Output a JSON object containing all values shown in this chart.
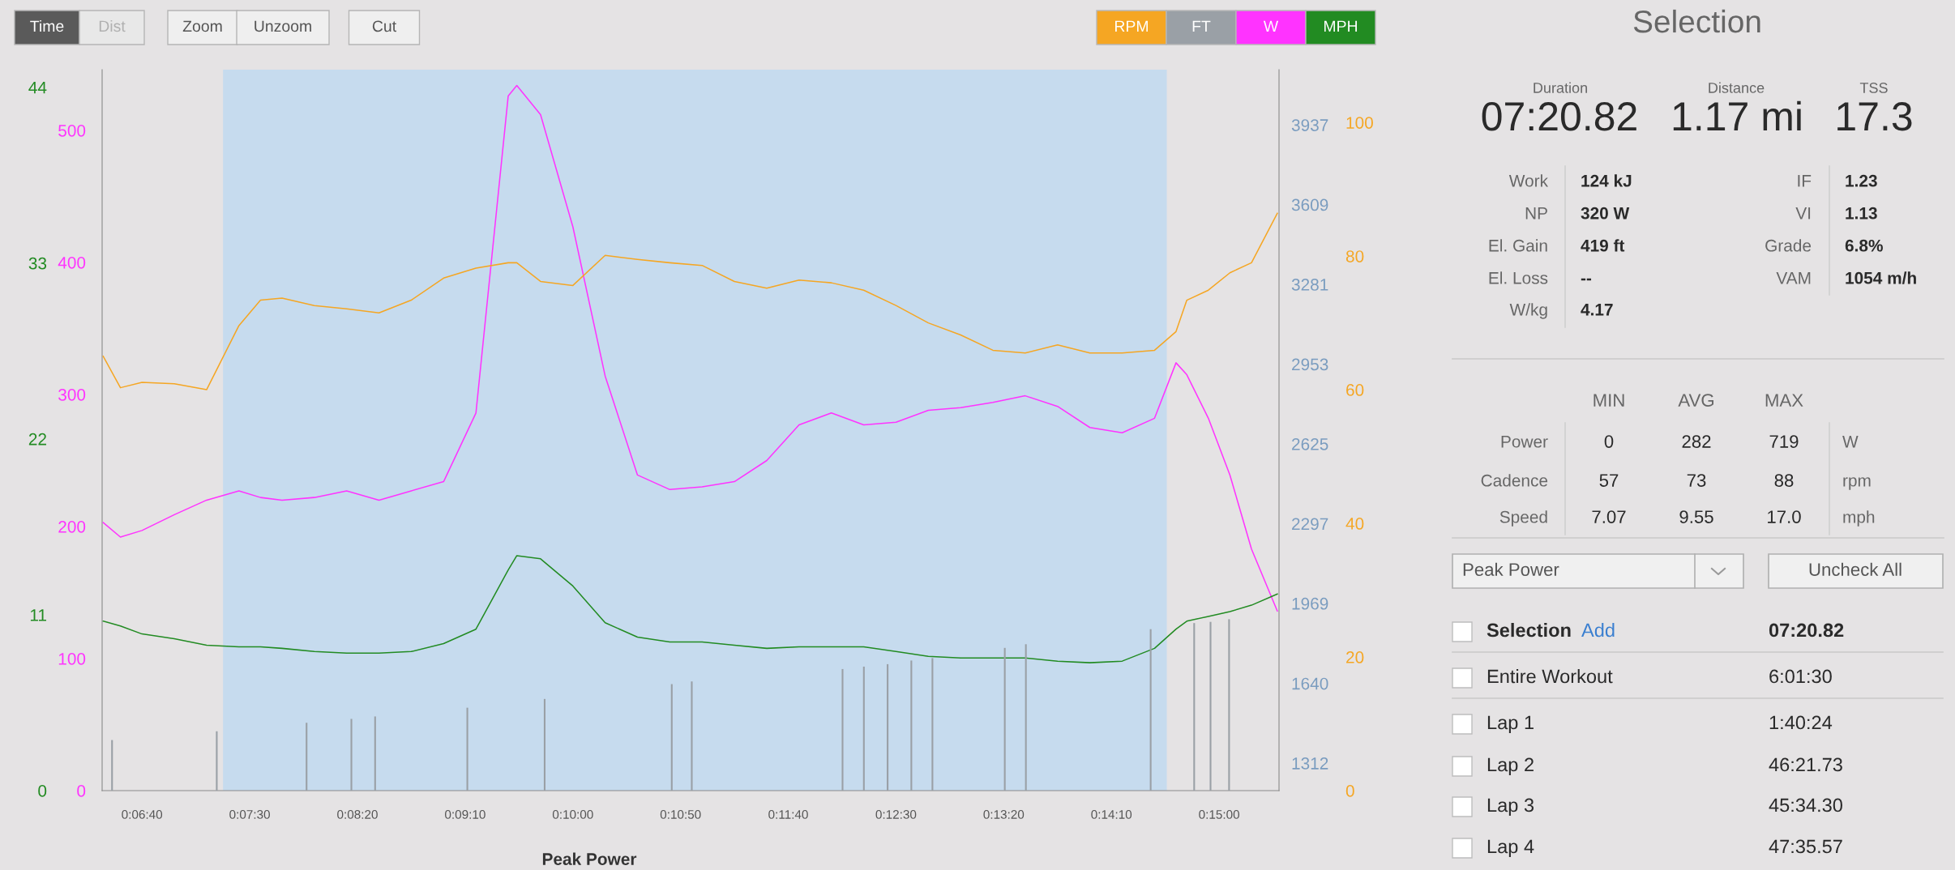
{
  "chart_data": [
    {
      "type": "line",
      "x": [
        0.10611,
        0.10833,
        0.11111,
        0.11528,
        0.11944,
        0.12361,
        0.12639,
        0.12917,
        0.13333,
        0.1375,
        0.14167,
        0.14583,
        0.15,
        0.15417,
        0.15833,
        0.15944,
        0.1625,
        0.16667,
        0.17083,
        0.175,
        0.17917,
        0.18333,
        0.1875,
        0.19167,
        0.19583,
        0.2,
        0.20417,
        0.20833,
        0.2125,
        0.21667,
        0.22083,
        0.225,
        0.22917,
        0.23333,
        0.2375,
        0.24167,
        0.24444,
        0.24583,
        0.24861,
        0.25139,
        0.25417,
        0.2575
      ],
      "series": [
        {
          "name": "RPM",
          "color": "#f5a623",
          "axis": "y2",
          "values": [
            65.0,
            60.3,
            61.1,
            60.9,
            60.0,
            69.6,
            73.4,
            73.7,
            72.6,
            72.1,
            71.5,
            73.4,
            76.7,
            78.2,
            79.0,
            79.0,
            76.2,
            75.6,
            80.1,
            79.5,
            79.0,
            78.6,
            76.2,
            75.2,
            76.4,
            76.0,
            74.9,
            72.6,
            70.0,
            68.2,
            65.9,
            65.5,
            66.7,
            65.5,
            65.5,
            65.9,
            68.7,
            73.4,
            74.9,
            77.5,
            79.0,
            86.4
          ]
        },
        {
          "name": "W",
          "color": "#ff33ff",
          "axis": "y",
          "values": [
            203,
            192,
            197,
            209,
            220,
            227,
            222,
            220,
            222,
            227,
            220,
            227,
            234,
            286,
            526,
            534,
            512,
            427,
            314,
            239,
            228,
            230,
            234,
            250,
            277,
            286,
            277,
            279,
            288,
            290,
            294,
            299,
            291,
            275,
            271,
            282,
            324,
            315,
            282,
            239,
            183,
            136
          ]
        },
        {
          "name": "MPH",
          "color": "#228b22",
          "axis": "y3",
          "values": [
            10.6,
            10.3,
            9.8,
            9.5,
            9.1,
            9.0,
            9.0,
            8.9,
            8.7,
            8.6,
            8.6,
            8.7,
            9.2,
            10.1,
            13.8,
            14.7,
            14.5,
            12.8,
            10.5,
            9.6,
            9.3,
            9.3,
            9.1,
            8.9,
            9.0,
            9.0,
            9.0,
            8.7,
            8.4,
            8.3,
            8.3,
            8.3,
            8.1,
            8.0,
            8.1,
            8.9,
            10.1,
            10.6,
            10.9,
            11.2,
            11.6,
            12.3
          ]
        }
      ],
      "xlim": [
        0.10597,
        0.25772
      ],
      "xticks": [
        {
          "value": 0.11111,
          "label": "0:06:40"
        },
        {
          "value": 0.125,
          "label": "0:07:30"
        },
        {
          "value": 0.13889,
          "label": "0:08:20"
        },
        {
          "value": 0.15278,
          "label": "0:09:10"
        },
        {
          "value": 0.16667,
          "label": "0:10:00"
        },
        {
          "value": 0.18056,
          "label": "0:10:50"
        },
        {
          "value": 0.19444,
          "label": "0:11:40"
        },
        {
          "value": 0.20833,
          "label": "0:12:30"
        },
        {
          "value": 0.22222,
          "label": "0:13:20"
        },
        {
          "value": 0.23611,
          "label": "0:14:10"
        },
        {
          "value": 0.25,
          "label": "0:15:00"
        }
      ],
      "ylim": [
        0,
        546
      ],
      "yticks": [
        0,
        100,
        200,
        300,
        400,
        500
      ],
      "y2lim": [
        0,
        107.9
      ],
      "y2ticks": [
        0,
        20,
        40,
        60,
        80,
        100
      ],
      "y3lim": [
        0,
        45.1
      ],
      "y3ticks": [
        0,
        11,
        22,
        33,
        44
      ],
      "bands": [
        {
          "axis": "x",
          "from": 0.12156,
          "to": 0.24325,
          "color": "#c6dbee"
        }
      ],
      "legend": "top right",
      "annotations": [
        "Time",
        "Dist",
        "Zoom",
        "Unzoom",
        "Cut",
        "Peak Power"
      ]
    },
    {
      "type": "bar",
      "x": [
        0.10725,
        0.12075,
        0.13233,
        0.13811,
        0.14117,
        0.15306,
        0.16303,
        0.17942,
        0.182,
        0.20144,
        0.20419,
        0.20725,
        0.21031,
        0.21303,
        0.22236,
        0.22508,
        0.24117,
        0.24678,
        0.24889,
        0.25128
      ],
      "series": [
        {
          "name": "FT",
          "color": "#9aa0a6",
          "values": [
            1407,
            1443,
            1478,
            1494,
            1504,
            1540,
            1576,
            1637,
            1648,
            1699,
            1709,
            1719,
            1734,
            1744,
            1786,
            1801,
            1863,
            1888,
            1893,
            1904
          ]
        }
      ],
      "xlim": [
        0.10597,
        0.25772
      ],
      "ylim": [
        1199,
        4164
      ],
      "yticks": [
        1312,
        1640,
        1969,
        2297,
        2625,
        2953,
        3281,
        3609,
        3937
      ],
      "tick_labels": "y",
      "legend": "top right"
    },
    {
      "type": "other",
      "title": "Selection",
      "annotations": [
        "Duration",
        "07:20.82",
        "Distance",
        "1.17 mi",
        "TSS",
        "17.3",
        "Work",
        "124 kJ",
        "NP",
        "320 W",
        "El. Gain",
        "419 ft",
        "El. Loss",
        "--",
        "W/kg",
        "4.17",
        "IF",
        "1.23",
        "VI",
        "1.13",
        "Grade",
        "6.8%",
        "VAM",
        "1054 m/h",
        "MIN",
        "AVG",
        "MAX",
        "Power",
        "0",
        "282",
        "719",
        "W",
        "Cadence",
        "57",
        "73",
        "88",
        "rpm",
        "Speed",
        "7.07",
        "9.55",
        "17.0",
        "mph",
        "Peak Power",
        "Uncheck All",
        "Selection",
        "Add",
        "07:20.82",
        "Entire Workout",
        "6:01:30",
        "Lap 1",
        "1:40:24",
        "Lap 2",
        "46:21.73",
        "Lap 3",
        "45:34.30",
        "Lap 4",
        "47:35.57"
      ]
    }
  ]
}
